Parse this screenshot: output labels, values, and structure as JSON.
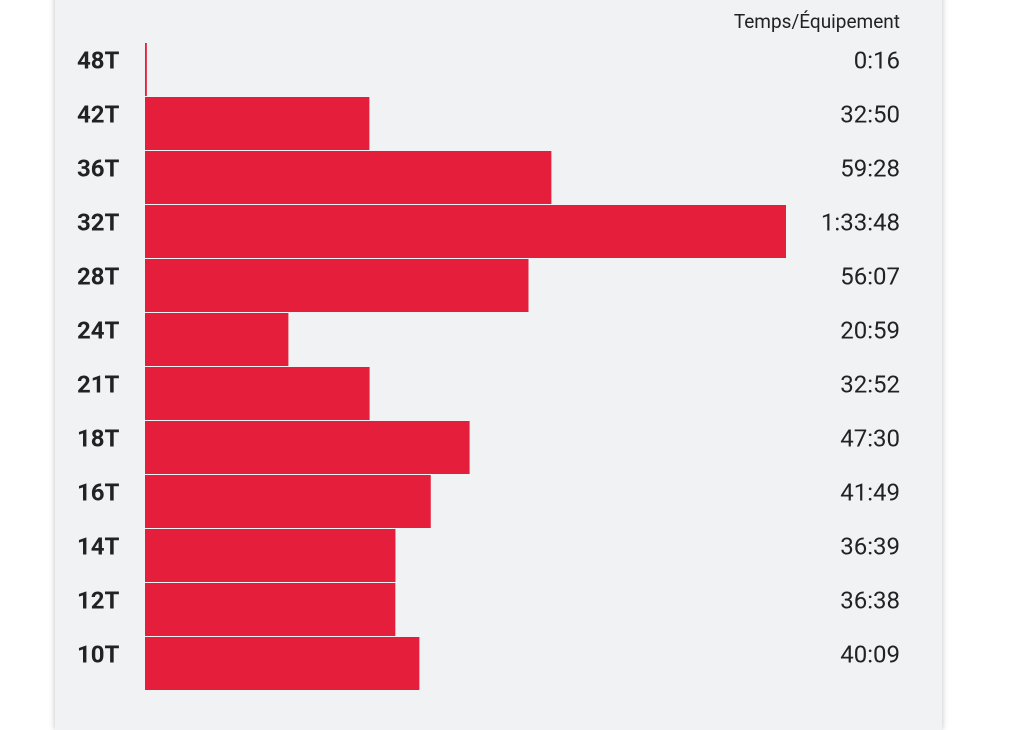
{
  "chart_data": {
    "type": "bar",
    "orientation": "horizontal",
    "xlabel": "Temps/Équipement",
    "categories": [
      "48T",
      "42T",
      "36T",
      "32T",
      "28T",
      "24T",
      "21T",
      "18T",
      "16T",
      "14T",
      "12T",
      "10T"
    ],
    "values": [
      16,
      1970,
      3568,
      5628,
      3367,
      1259,
      1972,
      2850,
      2509,
      2199,
      2198,
      2409
    ],
    "value_labels": [
      "0:16",
      "32:50",
      "59:28",
      "1:33:48",
      "56:07",
      "20:59",
      "32:52",
      "47:30",
      "41:49",
      "36:39",
      "36:38",
      "40:09"
    ],
    "color": "#e51e3c"
  }
}
